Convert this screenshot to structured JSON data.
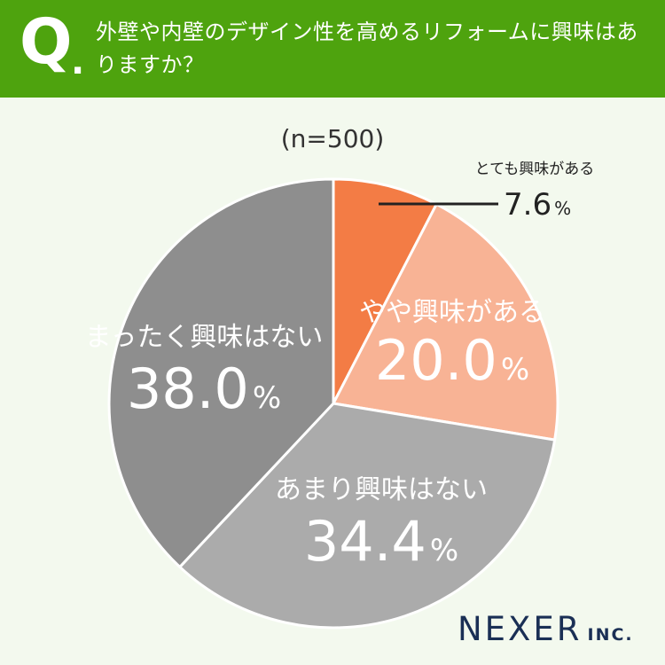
{
  "question": {
    "mark": "Q",
    "dot": ".",
    "text": "外壁や内壁のデザイン性を高めるリフォームに興味はありますか？"
  },
  "sample": "(n=500)",
  "logo": {
    "main": "NEXER",
    "sub": "INC."
  },
  "chart_data": {
    "type": "pie",
    "title": "外壁や内壁のデザイン性を高めるリフォームに興味はありますか？",
    "slices": [
      {
        "label": "とても興味がある",
        "value": 7.6,
        "display": "7.6",
        "color": "#f37c45"
      },
      {
        "label": "やや興味がある",
        "value": 20.0,
        "display": "20.0",
        "color": "#f8b395"
      },
      {
        "label": "あまり興味はない",
        "value": 34.4,
        "display": "34.4",
        "color": "#ababab"
      },
      {
        "label": "まったく興味はない",
        "value": 38.0,
        "display": "38.0",
        "color": "#8e8e8e"
      }
    ],
    "unit": "%"
  }
}
